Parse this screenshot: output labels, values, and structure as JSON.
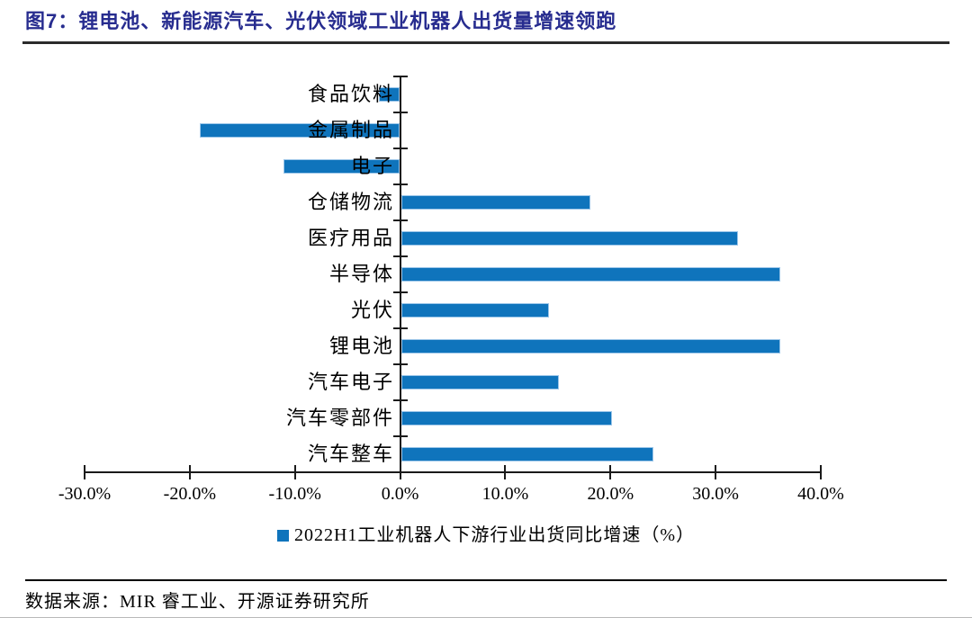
{
  "figure_title": "图7：锂电池、新能源汽车、光伏领域工业机器人出货量增速领跑",
  "source_note": "数据来源：MIR 睿工业、开源证券研究所",
  "colors": {
    "bar": "#0f74bc",
    "bar_edge": "#9cc6e9",
    "title": "#272c8f",
    "axis": "#1a1a1a"
  },
  "chart_data": {
    "type": "bar",
    "orientation": "horizontal",
    "title": "",
    "xlabel": "",
    "ylabel": "",
    "categories": [
      "食品饮料",
      "金属制品",
      "电子",
      "仓储物流",
      "医疗用品",
      "半导体",
      "光伏",
      "锂电池",
      "汽车电子",
      "汽车零部件",
      "汽车整车"
    ],
    "values": [
      -2,
      -19,
      -11,
      18,
      32,
      36,
      14,
      36,
      15,
      20,
      24
    ],
    "unit": "%",
    "xlim": [
      -30,
      40
    ],
    "x_tick_step": 10,
    "x_tick_labels": [
      "-30.0%",
      "-20.0%",
      "-10.0%",
      "0.0%",
      "10.0%",
      "20.0%",
      "30.0%",
      "40.0%"
    ],
    "grid": false,
    "legend": "2022H1工业机器人下游行业出货同比增速（%）",
    "legend_position": "bottom"
  }
}
